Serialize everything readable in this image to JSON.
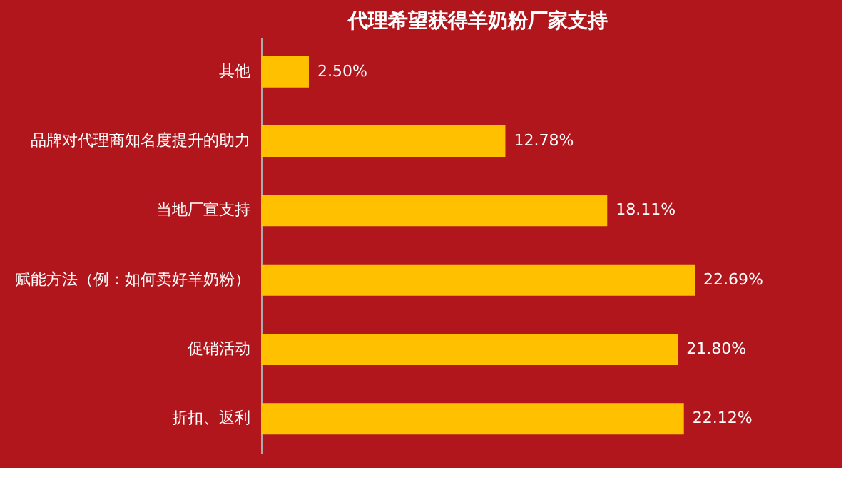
{
  "chart_data": {
    "type": "bar",
    "orientation": "horizontal",
    "title": "代理希望获得羊奶粉厂家支持",
    "categories": [
      "其他",
      "品牌对代理商知名度提升的助力",
      "当地厂宣支持",
      "赋能方法（例：如何卖好羊奶粉）",
      "促销活动",
      "折扣、返利"
    ],
    "values": [
      2.5,
      12.78,
      18.11,
      22.69,
      21.8,
      22.12
    ],
    "value_labels": [
      "2.50%",
      "12.78%",
      "18.11%",
      "22.69%",
      "21.80%",
      "22.12%"
    ],
    "color": "#ffc000",
    "tick_labels": "y"
  }
}
